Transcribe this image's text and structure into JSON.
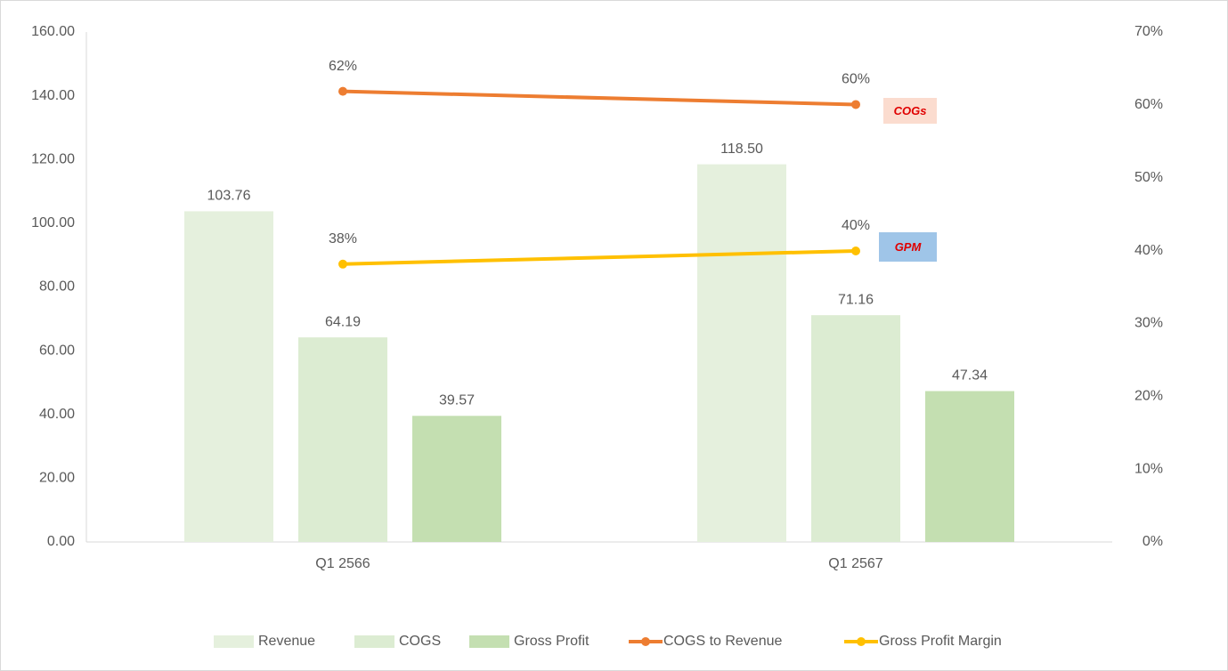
{
  "chart_data": {
    "type": "bar+line",
    "categories": [
      "Q1 2566",
      "Q1 2567"
    ],
    "series": [
      {
        "name": "Revenue",
        "type": "bar",
        "color": "#e5f0dd",
        "values": [
          103.76,
          118.5
        ],
        "value_labels": [
          "103.76",
          "118.50"
        ]
      },
      {
        "name": "COGS",
        "type": "bar",
        "color": "#dcecd2",
        "values": [
          64.19,
          71.16
        ]
      },
      {
        "name": "Gross Profit",
        "type": "bar",
        "color": "#c4dfb1",
        "values": [
          39.57,
          47.34
        ]
      },
      {
        "name": "COGS to Revenue",
        "type": "line",
        "axis": "y2",
        "color": "#ed7d31",
        "values": [
          61.86,
          60.05
        ],
        "value_labels": [
          "62%",
          "60%"
        ]
      },
      {
        "name": "Gross Profit Margin",
        "type": "line",
        "axis": "y2",
        "color": "#ffc000",
        "values": [
          38.14,
          39.95
        ],
        "value_labels": [
          "38%",
          "40%"
        ]
      }
    ],
    "ylim": [
      0,
      160
    ],
    "yticks": [
      {
        "value": 0,
        "label": "0.00"
      },
      {
        "value": 20,
        "label": "20.00"
      },
      {
        "value": 40,
        "label": "40.00"
      },
      {
        "value": 60,
        "label": "60.00"
      },
      {
        "value": 80,
        "label": "80.00"
      },
      {
        "value": 100,
        "label": "100.00"
      },
      {
        "value": 120,
        "label": "120.00"
      },
      {
        "value": 140,
        "label": "140.00"
      },
      {
        "value": 160,
        "label": "160.00"
      }
    ],
    "y2lim": [
      0,
      70
    ],
    "y2ticks": [
      {
        "value": 0,
        "label": "0%"
      },
      {
        "value": 10,
        "label": "10%"
      },
      {
        "value": 20,
        "label": "20%"
      },
      {
        "value": 30,
        "label": "30%"
      },
      {
        "value": 40,
        "label": "40%"
      },
      {
        "value": 50,
        "label": "50%"
      },
      {
        "value": 60,
        "label": "60%"
      },
      {
        "value": 70,
        "label": "70%"
      }
    ],
    "annotations": [
      {
        "text": "COGs",
        "color": "#fbdccf"
      },
      {
        "text": "GPM",
        "color": "#9fc5e8"
      }
    ],
    "legend": "bottom",
    "grid": false
  }
}
